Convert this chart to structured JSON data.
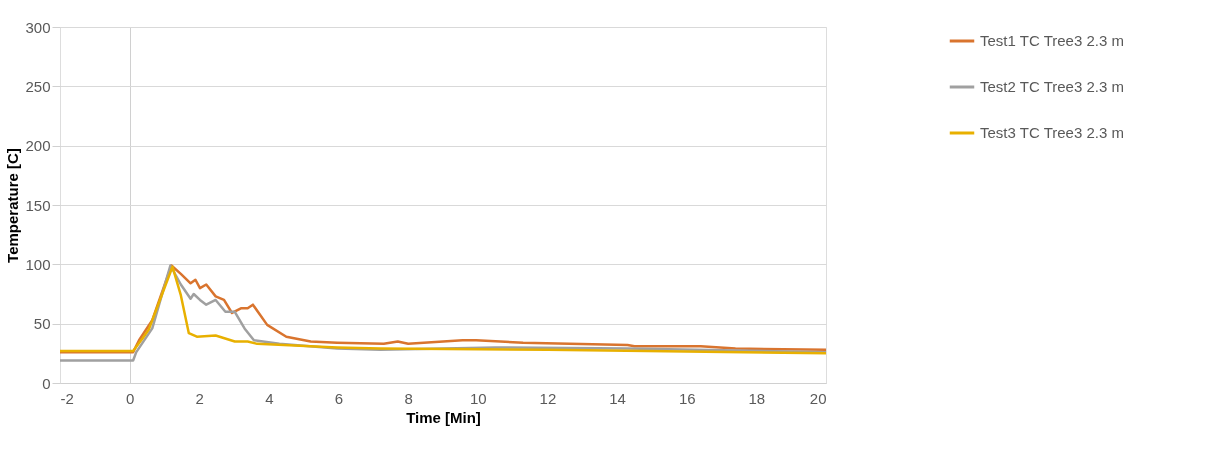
{
  "chart_data": {
    "type": "line",
    "xlabel": "Time [Min]",
    "ylabel": "Temperature [C]",
    "xlim": [
      -2,
      20
    ],
    "xticks": [
      -2,
      0,
      2,
      4,
      6,
      8,
      10,
      12,
      14,
      16,
      18,
      20
    ],
    "ylim": [
      0,
      300
    ],
    "yticks": [
      0,
      50,
      100,
      150,
      200,
      250,
      300
    ],
    "grid": "y",
    "legend": "right",
    "marker": "none",
    "line_style": "solid",
    "series": [
      {
        "name": "Test1 TC Tree3  2.3 m",
        "color": "#d9742e",
        "x": [
          -2,
          0.1,
          0.27,
          0.65,
          1.2,
          1.47,
          1.75,
          1.89,
          2.02,
          2.2,
          2.47,
          2.71,
          2.94,
          3.21,
          3.39,
          3.54,
          3.95,
          4.5,
          5.2,
          5.96,
          7.3,
          7.7,
          8.0,
          9.56,
          9.95,
          11.3,
          14.3,
          14.5,
          16.4,
          17.4,
          20
        ],
        "values": [
          26,
          26,
          36,
          53,
          99,
          92,
          84,
          87,
          80,
          83,
          73,
          70,
          59,
          63,
          63,
          66,
          49,
          39,
          35,
          34,
          33,
          35,
          33,
          36,
          36,
          34,
          32,
          31,
          31,
          29,
          28
        ]
      },
      {
        "name": "Test2 TC Tree3  2.3 m",
        "color": "#a0a0a0",
        "x": [
          -2,
          0.1,
          0.19,
          0.65,
          1.17,
          1.47,
          1.75,
          1.84,
          2.02,
          2.2,
          2.47,
          2.75,
          3.02,
          3.3,
          3.57,
          4.3,
          5.96,
          7.2,
          10.5,
          14.3,
          20
        ],
        "values": [
          19,
          19,
          26,
          46,
          99,
          83,
          71,
          75,
          70,
          66,
          70,
          60,
          60,
          46,
          36,
          33,
          29,
          28,
          30,
          29,
          26
        ]
      },
      {
        "name": "Test3 TC Tree3  2.3 m",
        "color": "#e8b000",
        "x": [
          -2,
          0.1,
          0.38,
          0.55,
          1.23,
          1.47,
          1.7,
          1.93,
          2.47,
          3.02,
          3.39,
          3.66,
          5.2,
          5.96,
          7.2,
          12,
          20
        ],
        "values": [
          27,
          27,
          38,
          45,
          98,
          74,
          42,
          39,
          40,
          35,
          35,
          33,
          31,
          30,
          29,
          28,
          25
        ]
      }
    ]
  }
}
